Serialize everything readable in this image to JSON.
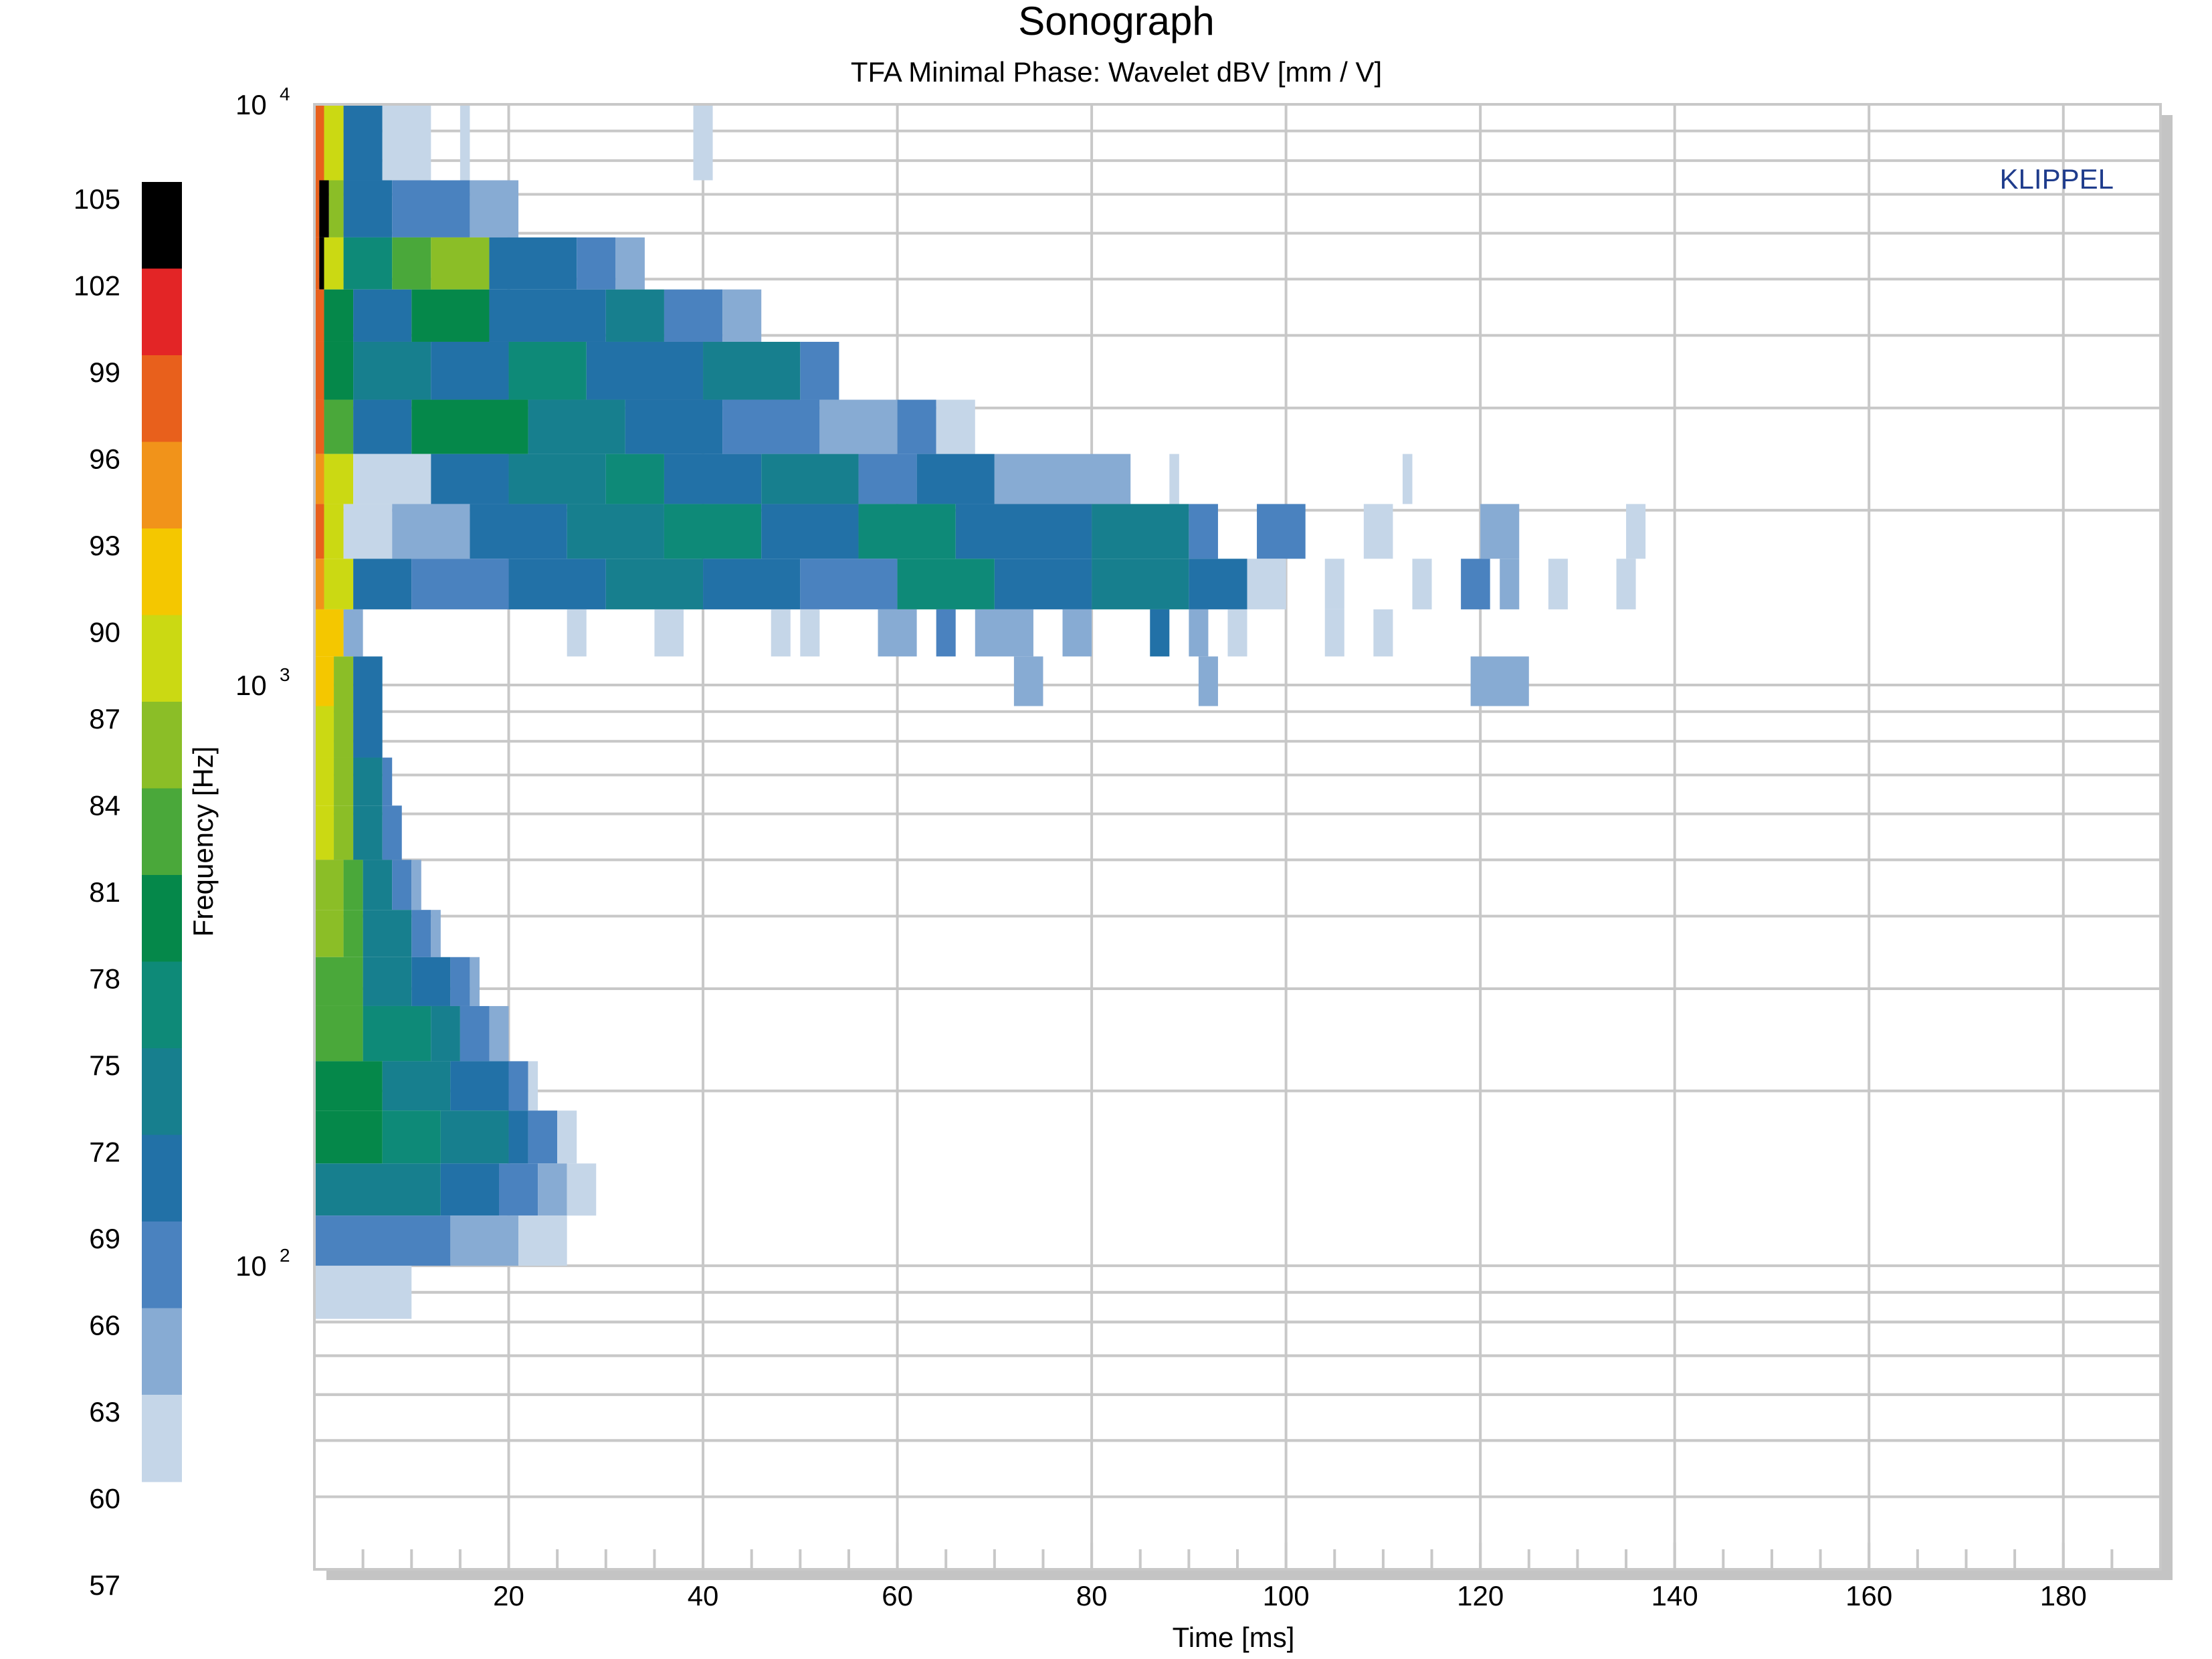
{
  "chart_data": {
    "type": "heatmap",
    "title": "Sonograph",
    "subtitle": "TFA Minimal Phase: Wavelet dBV [mm / V]",
    "watermark": "KLIPPEL",
    "xlabel": "Time [ms]",
    "ylabel": "Frequency [Hz]",
    "xlim": [
      0,
      190
    ],
    "ylim": [
      30,
      10000
    ],
    "y_scale": "log",
    "grid": true,
    "x_tick_labels": [
      "20",
      "40",
      "60",
      "80",
      "100",
      "120",
      "140",
      "160",
      "180"
    ],
    "x_ticks": [
      20,
      40,
      60,
      80,
      100,
      120,
      140,
      160,
      180
    ],
    "y_tick_labels": [
      {
        "base": "10",
        "exp": "2",
        "value": 100
      },
      {
        "base": "10",
        "exp": "3",
        "value": 1000
      },
      {
        "base": "10",
        "exp": "4",
        "value": 10000
      }
    ],
    "colorbar": {
      "tick_labels": [
        "105",
        "102",
        "99",
        "96",
        "93",
        "90",
        "87",
        "84",
        "81",
        "78",
        "75",
        "72",
        "69",
        "66",
        "63",
        "60",
        "57"
      ],
      "colors": [
        "#000000",
        "#e32526",
        "#e8601c",
        "#f1931a",
        "#f4c700",
        "#cbd913",
        "#8bbe27",
        "#4aa83a",
        "#05884a",
        "#0e8a78",
        "#177f8e",
        "#2271a7",
        "#4a82bf",
        "#87abd3",
        "#c5d6e8"
      ]
    },
    "level_colors": {
      "105": "#000000",
      "102": "#e32526",
      "99": "#e8601c",
      "96": "#f1931a",
      "93": "#f4c700",
      "90": "#cbd913",
      "87": "#8bbe27",
      "84": "#4aa83a",
      "81": "#05884a",
      "78": "#0e8a78",
      "75": "#177f8e",
      "72": "#2271a7",
      "69": "#4a82bf",
      "66": "#87abd3",
      "63": "#c5d6e8"
    },
    "bands": [
      {
        "f_lo": 7400,
        "f_hi": 10000,
        "segments": [
          [
            0,
            1,
            99
          ],
          [
            1,
            3,
            90
          ],
          [
            3,
            7,
            72
          ],
          [
            7,
            12,
            63
          ],
          [
            15,
            16,
            63
          ],
          [
            39,
            41,
            63
          ]
        ]
      },
      {
        "f_lo": 5900,
        "f_hi": 7400,
        "segments": [
          [
            0,
            0.5,
            99
          ],
          [
            0.5,
            1.5,
            105
          ],
          [
            1.5,
            3,
            87
          ],
          [
            3,
            8,
            72
          ],
          [
            8,
            16,
            69
          ],
          [
            16,
            21,
            66
          ]
        ]
      },
      {
        "f_lo": 4800,
        "f_hi": 5900,
        "segments": [
          [
            0,
            0.5,
            99
          ],
          [
            0.5,
            1,
            105
          ],
          [
            1,
            3,
            90
          ],
          [
            3,
            8,
            78
          ],
          [
            8,
            12,
            84
          ],
          [
            12,
            18,
            87
          ],
          [
            18,
            27,
            72
          ],
          [
            27,
            31,
            69
          ],
          [
            31,
            34,
            66
          ]
        ]
      },
      {
        "f_lo": 3900,
        "f_hi": 4800,
        "segments": [
          [
            0,
            1,
            99
          ],
          [
            1,
            4,
            81
          ],
          [
            4,
            10,
            72
          ],
          [
            10,
            18,
            81
          ],
          [
            18,
            30,
            72
          ],
          [
            30,
            36,
            75
          ],
          [
            36,
            42,
            69
          ],
          [
            42,
            46,
            66
          ]
        ]
      },
      {
        "f_lo": 3100,
        "f_hi": 3900,
        "segments": [
          [
            0,
            1,
            99
          ],
          [
            1,
            4,
            81
          ],
          [
            4,
            12,
            75
          ],
          [
            12,
            20,
            72
          ],
          [
            20,
            28,
            78
          ],
          [
            28,
            40,
            72
          ],
          [
            40,
            50,
            75
          ],
          [
            50,
            54,
            69
          ]
        ]
      },
      {
        "f_lo": 2500,
        "f_hi": 3100,
        "segments": [
          [
            0,
            1,
            99
          ],
          [
            1,
            4,
            84
          ],
          [
            4,
            10,
            72
          ],
          [
            10,
            22,
            81
          ],
          [
            22,
            32,
            75
          ],
          [
            32,
            42,
            72
          ],
          [
            42,
            52,
            69
          ],
          [
            52,
            60,
            66
          ],
          [
            60,
            64,
            69
          ],
          [
            64,
            68,
            63
          ]
        ]
      },
      {
        "f_lo": 2050,
        "f_hi": 2500,
        "segments": [
          [
            0,
            1,
            96
          ],
          [
            1,
            4,
            90
          ],
          [
            4,
            12,
            63
          ],
          [
            12,
            20,
            72
          ],
          [
            20,
            30,
            75
          ],
          [
            30,
            36,
            78
          ],
          [
            36,
            46,
            72
          ],
          [
            46,
            56,
            75
          ],
          [
            56,
            62,
            69
          ],
          [
            62,
            70,
            72
          ],
          [
            70,
            84,
            66
          ],
          [
            88,
            89,
            63
          ],
          [
            112,
            113,
            63
          ]
        ]
      },
      {
        "f_lo": 1650,
        "f_hi": 2050,
        "segments": [
          [
            0,
            1,
            99
          ],
          [
            1,
            3,
            90
          ],
          [
            3,
            8,
            63
          ],
          [
            8,
            16,
            66
          ],
          [
            16,
            26,
            72
          ],
          [
            26,
            36,
            75
          ],
          [
            36,
            46,
            78
          ],
          [
            46,
            56,
            72
          ],
          [
            56,
            66,
            78
          ],
          [
            66,
            80,
            72
          ],
          [
            80,
            90,
            75
          ],
          [
            90,
            93,
            69
          ],
          [
            97,
            102,
            69
          ],
          [
            108,
            111,
            63
          ],
          [
            120,
            124,
            66
          ],
          [
            135,
            137,
            63
          ]
        ]
      },
      {
        "f_lo": 1350,
        "f_hi": 1650,
        "segments": [
          [
            0,
            1,
            96
          ],
          [
            1,
            4,
            90
          ],
          [
            4,
            10,
            72
          ],
          [
            10,
            20,
            69
          ],
          [
            20,
            30,
            72
          ],
          [
            30,
            40,
            75
          ],
          [
            40,
            50,
            72
          ],
          [
            50,
            60,
            69
          ],
          [
            60,
            70,
            78
          ],
          [
            70,
            80,
            72
          ],
          [
            80,
            90,
            75
          ],
          [
            90,
            96,
            72
          ],
          [
            96,
            100,
            63
          ],
          [
            104,
            106,
            63
          ],
          [
            113,
            115,
            63
          ],
          [
            118,
            121,
            69
          ],
          [
            122,
            124,
            66
          ],
          [
            127,
            129,
            63
          ],
          [
            134,
            136,
            63
          ]
        ]
      },
      {
        "f_lo": 1120,
        "f_hi": 1350,
        "segments": [
          [
            0,
            3,
            93
          ],
          [
            3,
            5,
            66
          ],
          [
            26,
            28,
            63
          ],
          [
            35,
            38,
            63
          ],
          [
            47,
            49,
            63
          ],
          [
            50,
            52,
            63
          ],
          [
            58,
            62,
            66
          ],
          [
            64,
            66,
            69
          ],
          [
            68,
            74,
            66
          ],
          [
            77,
            80,
            66
          ],
          [
            86,
            88,
            72
          ],
          [
            90,
            92,
            66
          ],
          [
            94,
            96,
            63
          ],
          [
            104,
            106,
            63
          ],
          [
            109,
            111,
            63
          ]
        ]
      },
      {
        "f_lo": 920,
        "f_hi": 1120,
        "segments": [
          [
            0,
            2,
            93
          ],
          [
            2,
            4,
            87
          ],
          [
            4,
            7,
            72
          ],
          [
            72,
            75,
            66
          ],
          [
            91,
            93,
            66
          ],
          [
            119,
            125,
            66
          ]
        ]
      },
      {
        "f_lo": 750,
        "f_hi": 920,
        "segments": [
          [
            0,
            2,
            90
          ],
          [
            2,
            4,
            87
          ],
          [
            4,
            7,
            72
          ]
        ]
      },
      {
        "f_lo": 620,
        "f_hi": 750,
        "segments": [
          [
            0,
            2,
            90
          ],
          [
            2,
            4,
            87
          ],
          [
            4,
            7,
            75
          ],
          [
            7,
            8,
            69
          ]
        ]
      },
      {
        "f_lo": 500,
        "f_hi": 620,
        "segments": [
          [
            0,
            2,
            90
          ],
          [
            2,
            4,
            87
          ],
          [
            4,
            7,
            75
          ],
          [
            7,
            9,
            69
          ]
        ]
      },
      {
        "f_lo": 410,
        "f_hi": 500,
        "segments": [
          [
            0,
            3,
            87
          ],
          [
            3,
            5,
            84
          ],
          [
            5,
            8,
            75
          ],
          [
            8,
            10,
            69
          ],
          [
            10,
            11,
            66
          ]
        ]
      },
      {
        "f_lo": 340,
        "f_hi": 410,
        "segments": [
          [
            0,
            3,
            87
          ],
          [
            3,
            5,
            84
          ],
          [
            5,
            10,
            75
          ],
          [
            10,
            12,
            69
          ],
          [
            12,
            13,
            66
          ]
        ]
      },
      {
        "f_lo": 280,
        "f_hi": 340,
        "segments": [
          [
            0,
            5,
            84
          ],
          [
            5,
            10,
            75
          ],
          [
            10,
            14,
            72
          ],
          [
            14,
            16,
            69
          ],
          [
            16,
            17,
            66
          ]
        ]
      },
      {
        "f_lo": 225,
        "f_hi": 280,
        "segments": [
          [
            0,
            5,
            84
          ],
          [
            5,
            12,
            78
          ],
          [
            12,
            15,
            75
          ],
          [
            15,
            18,
            69
          ],
          [
            18,
            20,
            66
          ]
        ]
      },
      {
        "f_lo": 185,
        "f_hi": 225,
        "segments": [
          [
            0,
            7,
            81
          ],
          [
            7,
            14,
            75
          ],
          [
            14,
            20,
            72
          ],
          [
            20,
            22,
            69
          ],
          [
            22,
            23,
            63
          ]
        ]
      },
      {
        "f_lo": 150,
        "f_hi": 185,
        "segments": [
          [
            0,
            7,
            81
          ],
          [
            7,
            13,
            78
          ],
          [
            13,
            20,
            75
          ],
          [
            20,
            22,
            72
          ],
          [
            22,
            25,
            69
          ],
          [
            25,
            27,
            63
          ]
        ]
      },
      {
        "f_lo": 122,
        "f_hi": 150,
        "segments": [
          [
            0,
            13,
            75
          ],
          [
            13,
            19,
            72
          ],
          [
            19,
            23,
            69
          ],
          [
            23,
            26,
            66
          ],
          [
            26,
            29,
            63
          ]
        ]
      },
      {
        "f_lo": 100,
        "f_hi": 122,
        "segments": [
          [
            0,
            14,
            69
          ],
          [
            14,
            21,
            66
          ],
          [
            21,
            26,
            63
          ]
        ]
      },
      {
        "f_lo": 81,
        "f_hi": 100,
        "segments": [
          [
            0,
            10,
            63
          ]
        ]
      }
    ]
  }
}
